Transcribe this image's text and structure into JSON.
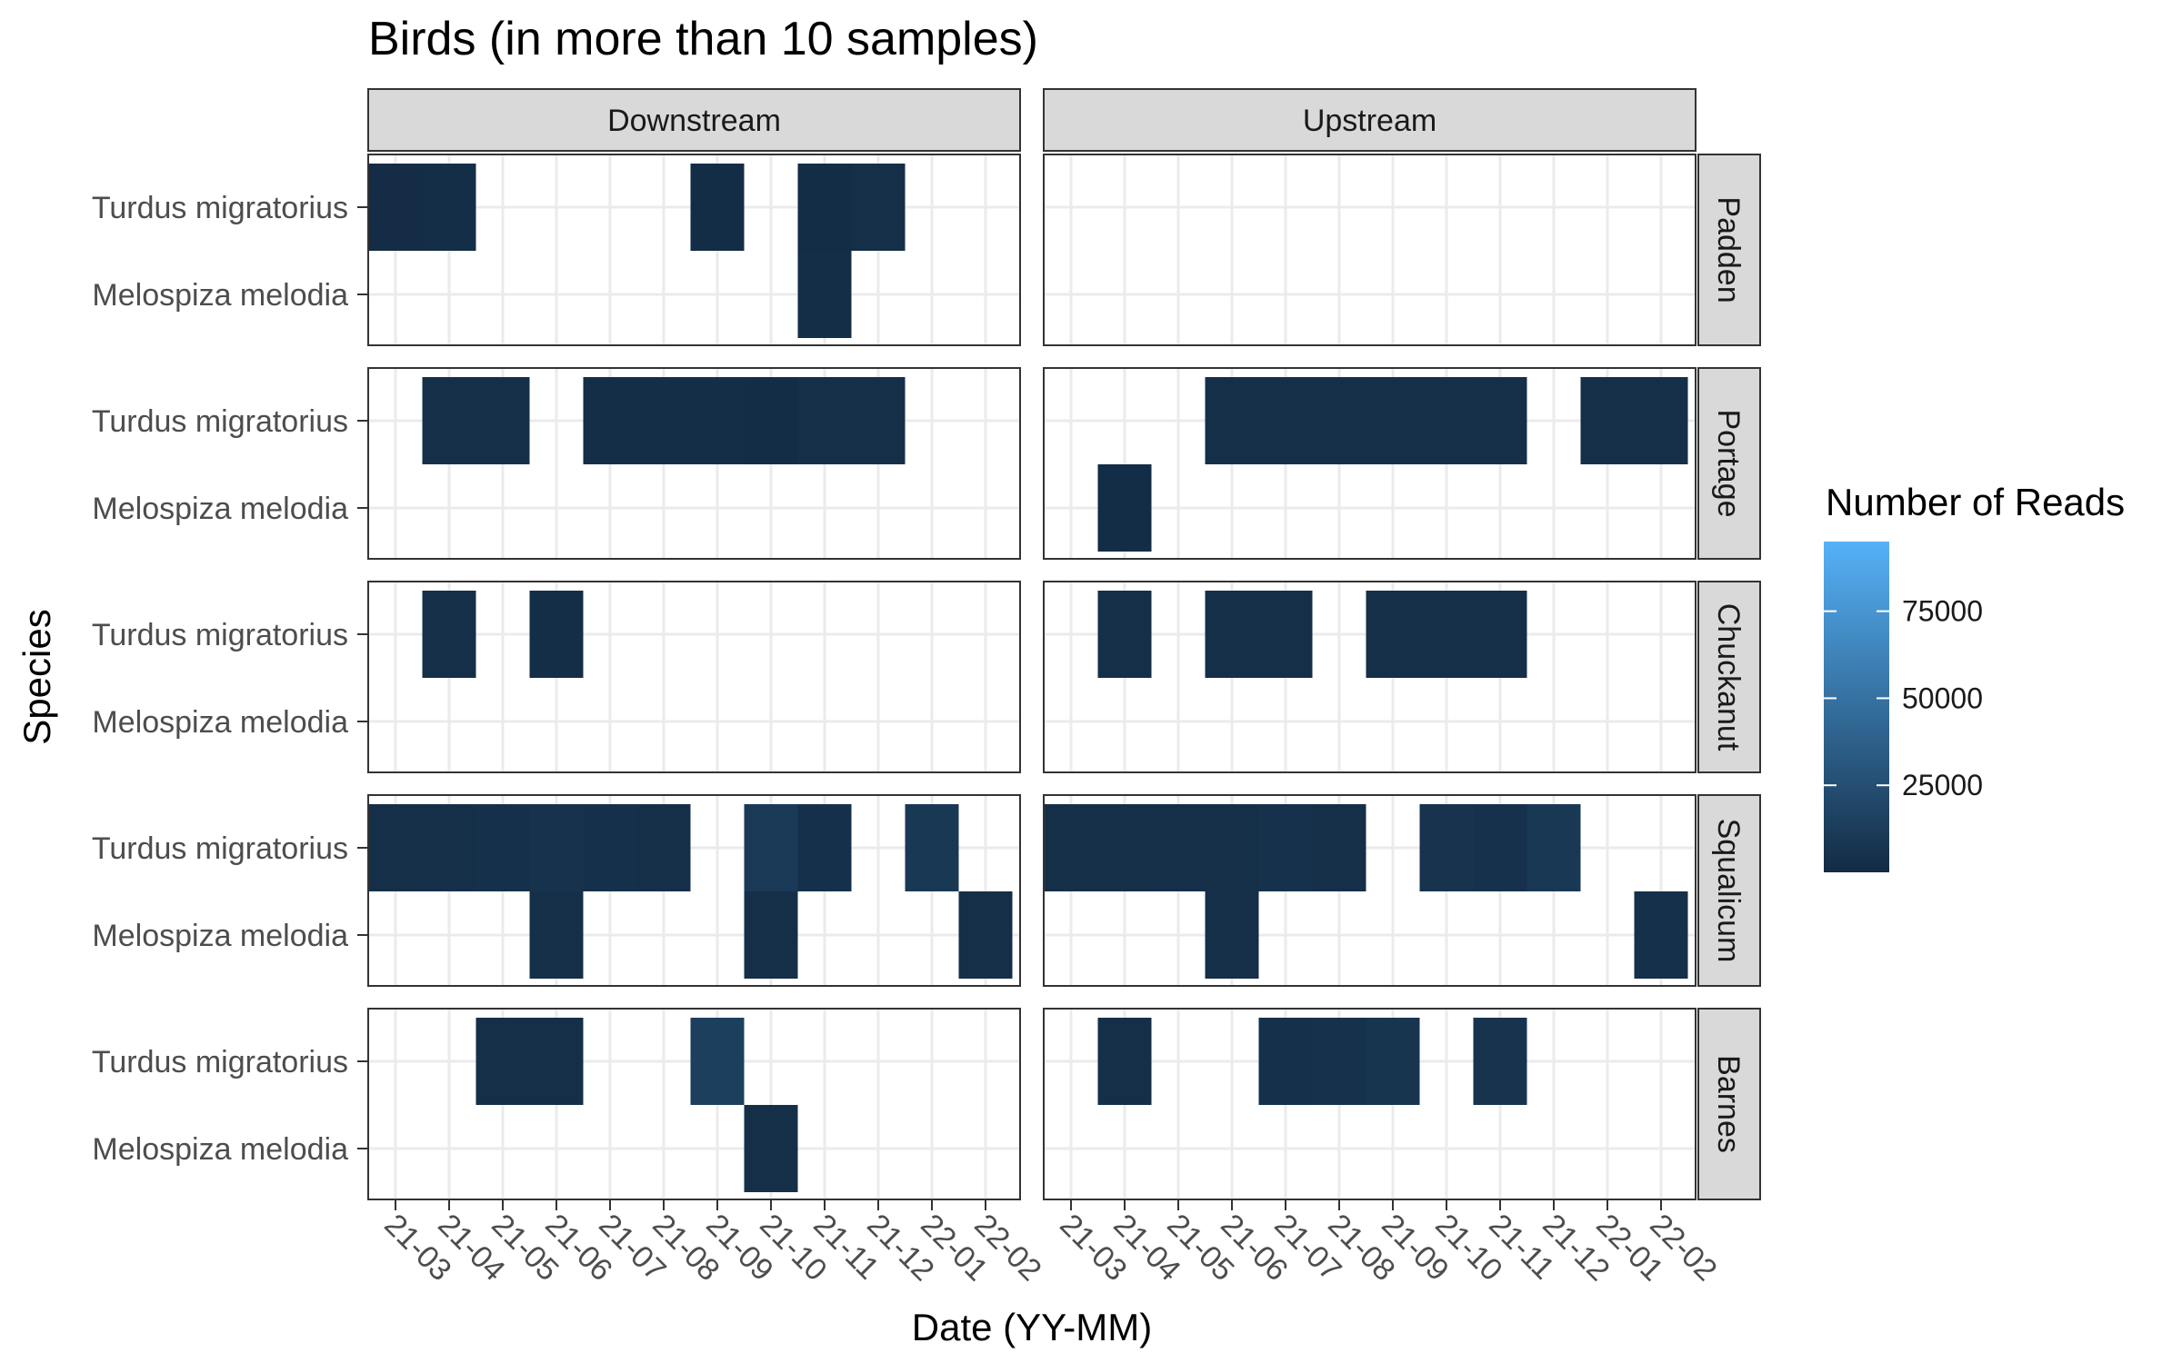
{
  "chart_data": {
    "type": "heatmap",
    "title": "Birds (in more than 10 samples)",
    "xlabel": "Date (YY-MM)",
    "ylabel": "Species",
    "x_categories": [
      "21-03",
      "21-04",
      "21-05",
      "21-06",
      "21-07",
      "21-08",
      "21-09",
      "21-10",
      "21-11",
      "21-12",
      "22-01",
      "22-02"
    ],
    "y_categories": [
      "Turdus migratorius",
      "Melospiza melodia"
    ],
    "facet_columns": [
      "Downstream",
      "Upstream"
    ],
    "facet_rows": [
      "Padden",
      "Portage",
      "Chuckanut",
      "Squalicum",
      "Barnes"
    ],
    "legend": {
      "title": "Number of Reads",
      "breaks": [
        25000,
        50000,
        75000
      ],
      "break_labels": [
        "25000",
        "50000",
        "75000"
      ],
      "range": [
        0,
        95000
      ],
      "low_color": "#132b43",
      "high_color": "#56b1f7",
      "position": "right"
    },
    "grid": true,
    "cells": [
      {
        "site": "Padden",
        "stream": "Downstream",
        "species": "Turdus migratorius",
        "date": "21-03",
        "reads": 1000
      },
      {
        "site": "Padden",
        "stream": "Downstream",
        "species": "Turdus migratorius",
        "date": "21-04",
        "reads": 2000
      },
      {
        "site": "Padden",
        "stream": "Downstream",
        "species": "Turdus migratorius",
        "date": "21-09",
        "reads": 1500
      },
      {
        "site": "Padden",
        "stream": "Downstream",
        "species": "Turdus migratorius",
        "date": "21-11",
        "reads": 1500
      },
      {
        "site": "Padden",
        "stream": "Downstream",
        "species": "Turdus migratorius",
        "date": "21-12",
        "reads": 2500
      },
      {
        "site": "Padden",
        "stream": "Downstream",
        "species": "Melospiza melodia",
        "date": "21-11",
        "reads": 2000
      },
      {
        "site": "Portage",
        "stream": "Downstream",
        "species": "Turdus migratorius",
        "date": "21-04",
        "reads": 2500
      },
      {
        "site": "Portage",
        "stream": "Downstream",
        "species": "Turdus migratorius",
        "date": "21-05",
        "reads": 2500
      },
      {
        "site": "Portage",
        "stream": "Downstream",
        "species": "Turdus migratorius",
        "date": "21-07",
        "reads": 2000
      },
      {
        "site": "Portage",
        "stream": "Downstream",
        "species": "Turdus migratorius",
        "date": "21-08",
        "reads": 2000
      },
      {
        "site": "Portage",
        "stream": "Downstream",
        "species": "Turdus migratorius",
        "date": "21-09",
        "reads": 2000
      },
      {
        "site": "Portage",
        "stream": "Downstream",
        "species": "Turdus migratorius",
        "date": "21-10",
        "reads": 1500
      },
      {
        "site": "Portage",
        "stream": "Downstream",
        "species": "Turdus migratorius",
        "date": "21-11",
        "reads": 2500
      },
      {
        "site": "Portage",
        "stream": "Downstream",
        "species": "Turdus migratorius",
        "date": "21-12",
        "reads": 3000
      },
      {
        "site": "Portage",
        "stream": "Upstream",
        "species": "Turdus migratorius",
        "date": "21-06",
        "reads": 2500
      },
      {
        "site": "Portage",
        "stream": "Upstream",
        "species": "Turdus migratorius",
        "date": "21-07",
        "reads": 2500
      },
      {
        "site": "Portage",
        "stream": "Upstream",
        "species": "Turdus migratorius",
        "date": "21-08",
        "reads": 2500
      },
      {
        "site": "Portage",
        "stream": "Upstream",
        "species": "Turdus migratorius",
        "date": "21-09",
        "reads": 3000
      },
      {
        "site": "Portage",
        "stream": "Upstream",
        "species": "Turdus migratorius",
        "date": "21-10",
        "reads": 3000
      },
      {
        "site": "Portage",
        "stream": "Upstream",
        "species": "Turdus migratorius",
        "date": "21-11",
        "reads": 2500
      },
      {
        "site": "Portage",
        "stream": "Upstream",
        "species": "Turdus migratorius",
        "date": "22-01",
        "reads": 3000
      },
      {
        "site": "Portage",
        "stream": "Upstream",
        "species": "Turdus migratorius",
        "date": "22-02",
        "reads": 3000
      },
      {
        "site": "Portage",
        "stream": "Upstream",
        "species": "Melospiza melodia",
        "date": "21-04",
        "reads": 1500
      },
      {
        "site": "Chuckanut",
        "stream": "Downstream",
        "species": "Turdus migratorius",
        "date": "21-04",
        "reads": 3000
      },
      {
        "site": "Chuckanut",
        "stream": "Downstream",
        "species": "Turdus migratorius",
        "date": "21-06",
        "reads": 2000
      },
      {
        "site": "Chuckanut",
        "stream": "Upstream",
        "species": "Turdus migratorius",
        "date": "21-04",
        "reads": 2500
      },
      {
        "site": "Chuckanut",
        "stream": "Upstream",
        "species": "Turdus migratorius",
        "date": "21-06",
        "reads": 2500
      },
      {
        "site": "Chuckanut",
        "stream": "Upstream",
        "species": "Turdus migratorius",
        "date": "21-07",
        "reads": 2500
      },
      {
        "site": "Chuckanut",
        "stream": "Upstream",
        "species": "Turdus migratorius",
        "date": "21-09",
        "reads": 2500
      },
      {
        "site": "Chuckanut",
        "stream": "Upstream",
        "species": "Turdus migratorius",
        "date": "21-10",
        "reads": 3000
      },
      {
        "site": "Chuckanut",
        "stream": "Upstream",
        "species": "Turdus migratorius",
        "date": "21-11",
        "reads": 3000
      },
      {
        "site": "Squalicum",
        "stream": "Downstream",
        "species": "Turdus migratorius",
        "date": "21-03",
        "reads": 2500
      },
      {
        "site": "Squalicum",
        "stream": "Downstream",
        "species": "Turdus migratorius",
        "date": "21-04",
        "reads": 3000
      },
      {
        "site": "Squalicum",
        "stream": "Downstream",
        "species": "Turdus migratorius",
        "date": "21-05",
        "reads": 3500
      },
      {
        "site": "Squalicum",
        "stream": "Downstream",
        "species": "Turdus migratorius",
        "date": "21-06",
        "reads": 5000
      },
      {
        "site": "Squalicum",
        "stream": "Downstream",
        "species": "Turdus migratorius",
        "date": "21-07",
        "reads": 3500
      },
      {
        "site": "Squalicum",
        "stream": "Downstream",
        "species": "Turdus migratorius",
        "date": "21-08",
        "reads": 3000
      },
      {
        "site": "Squalicum",
        "stream": "Downstream",
        "species": "Turdus migratorius",
        "date": "21-10",
        "reads": 10000
      },
      {
        "site": "Squalicum",
        "stream": "Downstream",
        "species": "Turdus migratorius",
        "date": "21-11",
        "reads": 3500
      },
      {
        "site": "Squalicum",
        "stream": "Downstream",
        "species": "Turdus migratorius",
        "date": "22-01",
        "reads": 9000
      },
      {
        "site": "Squalicum",
        "stream": "Downstream",
        "species": "Melospiza melodia",
        "date": "21-06",
        "reads": 3000
      },
      {
        "site": "Squalicum",
        "stream": "Downstream",
        "species": "Melospiza melodia",
        "date": "21-10",
        "reads": 3000
      },
      {
        "site": "Squalicum",
        "stream": "Downstream",
        "species": "Melospiza melodia",
        "date": "22-02",
        "reads": 3000
      },
      {
        "site": "Squalicum",
        "stream": "Upstream",
        "species": "Turdus migratorius",
        "date": "21-03",
        "reads": 2500
      },
      {
        "site": "Squalicum",
        "stream": "Upstream",
        "species": "Turdus migratorius",
        "date": "21-04",
        "reads": 2500
      },
      {
        "site": "Squalicum",
        "stream": "Upstream",
        "species": "Turdus migratorius",
        "date": "21-05",
        "reads": 3000
      },
      {
        "site": "Squalicum",
        "stream": "Upstream",
        "species": "Turdus migratorius",
        "date": "21-06",
        "reads": 3000
      },
      {
        "site": "Squalicum",
        "stream": "Upstream",
        "species": "Turdus migratorius",
        "date": "21-07",
        "reads": 4500
      },
      {
        "site": "Squalicum",
        "stream": "Upstream",
        "species": "Turdus migratorius",
        "date": "21-08",
        "reads": 3000
      },
      {
        "site": "Squalicum",
        "stream": "Upstream",
        "species": "Turdus migratorius",
        "date": "21-10",
        "reads": 6000
      },
      {
        "site": "Squalicum",
        "stream": "Upstream",
        "species": "Turdus migratorius",
        "date": "21-11",
        "reads": 4500
      },
      {
        "site": "Squalicum",
        "stream": "Upstream",
        "species": "Turdus migratorius",
        "date": "21-12",
        "reads": 9000
      },
      {
        "site": "Squalicum",
        "stream": "Upstream",
        "species": "Melospiza melodia",
        "date": "21-06",
        "reads": 2500
      },
      {
        "site": "Squalicum",
        "stream": "Upstream",
        "species": "Melospiza melodia",
        "date": "22-02",
        "reads": 3500
      },
      {
        "site": "Barnes",
        "stream": "Downstream",
        "species": "Turdus migratorius",
        "date": "21-05",
        "reads": 3000
      },
      {
        "site": "Barnes",
        "stream": "Downstream",
        "species": "Turdus migratorius",
        "date": "21-06",
        "reads": 2500
      },
      {
        "site": "Barnes",
        "stream": "Downstream",
        "species": "Turdus migratorius",
        "date": "21-09",
        "reads": 14000
      },
      {
        "site": "Barnes",
        "stream": "Downstream",
        "species": "Melospiza melodia",
        "date": "21-10",
        "reads": 3000
      },
      {
        "site": "Barnes",
        "stream": "Upstream",
        "species": "Turdus migratorius",
        "date": "21-04",
        "reads": 2500
      },
      {
        "site": "Barnes",
        "stream": "Upstream",
        "species": "Turdus migratorius",
        "date": "21-07",
        "reads": 3500
      },
      {
        "site": "Barnes",
        "stream": "Upstream",
        "species": "Turdus migratorius",
        "date": "21-08",
        "reads": 4000
      },
      {
        "site": "Barnes",
        "stream": "Upstream",
        "species": "Turdus migratorius",
        "date": "21-09",
        "reads": 7000
      },
      {
        "site": "Barnes",
        "stream": "Upstream",
        "species": "Turdus migratorius",
        "date": "21-11",
        "reads": 6000
      }
    ]
  }
}
